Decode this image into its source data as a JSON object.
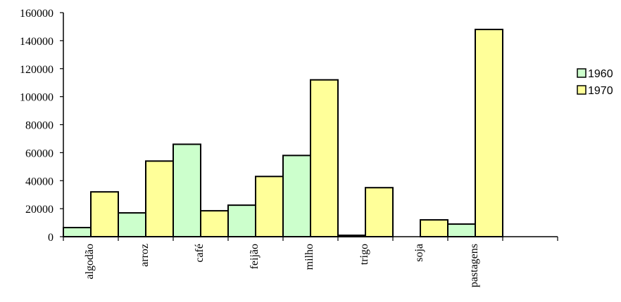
{
  "chart_data": {
    "type": "bar",
    "categories": [
      "algodão",
      "arroz",
      "café",
      "feijão",
      "milho",
      "trigo",
      "soja",
      "pastagens",
      ""
    ],
    "series": [
      {
        "name": "1960",
        "color": "#ccffcc",
        "values": [
          6500,
          17000,
          66000,
          22500,
          58000,
          1000,
          0,
          9000,
          0
        ]
      },
      {
        "name": "1970",
        "color": "#ffff99",
        "values": [
          32000,
          54000,
          18500,
          43000,
          112000,
          35000,
          12000,
          148000,
          0
        ]
      }
    ],
    "ylim": [
      0,
      160000
    ],
    "yticks": [
      0,
      20000,
      40000,
      60000,
      80000,
      100000,
      120000,
      140000,
      160000
    ],
    "legend": {
      "position": "right"
    },
    "grid": false
  }
}
